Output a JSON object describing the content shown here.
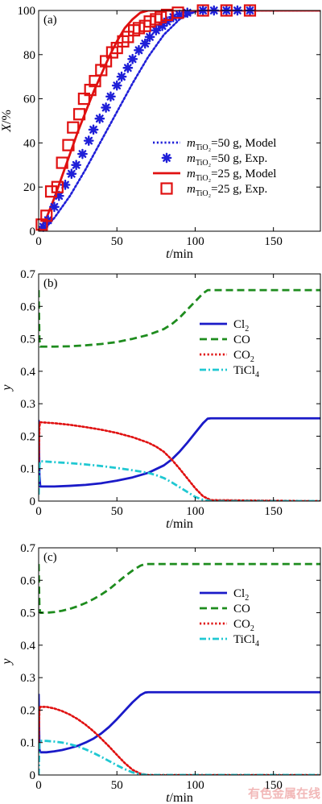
{
  "chart_data": [
    {
      "type": "line",
      "panel_label": "(a)",
      "xlabel": "t/min",
      "ylabel": "X/%",
      "xlim": [
        0,
        180
      ],
      "ylim": [
        0,
        100
      ],
      "xticks": [
        0,
        50,
        100,
        150
      ],
      "yticks": [
        0,
        20,
        40,
        60,
        80,
        100
      ],
      "legend_position": "lower-right",
      "series": [
        {
          "name": "m_TiO2=50 g, Model",
          "legend_label": {
            "m": "m",
            "sub": "TiO₂",
            "rest": "=50 g, Model"
          },
          "style": "dotted",
          "color": "#1f1fd8",
          "marker": "none",
          "x": [
            0,
            5,
            10,
            20,
            30,
            40,
            50,
            60,
            70,
            80,
            90,
            100,
            110,
            120,
            180
          ],
          "y": [
            0,
            2,
            6,
            16,
            28,
            41,
            54,
            67,
            79,
            89,
            96,
            99.5,
            100,
            100,
            100
          ]
        },
        {
          "name": "m_TiO2=50 g, Exp.",
          "legend_label": {
            "m": "m",
            "sub": "TiO₂",
            "rest": "=50 g, Exp."
          },
          "style": "none",
          "color": "#1f1fd8",
          "marker": "asterisk",
          "x": [
            3,
            6,
            10,
            13,
            17,
            21,
            24,
            28,
            32,
            35,
            39,
            43,
            46,
            50,
            53,
            57,
            60,
            64,
            68,
            71,
            75,
            79,
            82,
            86,
            90,
            95,
            105,
            112,
            120,
            127,
            135
          ],
          "y": [
            2,
            5,
            11,
            16,
            21,
            26,
            30,
            35,
            41,
            46,
            51,
            56,
            61,
            66,
            70,
            74,
            78,
            82,
            85,
            88,
            91,
            93,
            95,
            97,
            98,
            99,
            100,
            100,
            100,
            100,
            100
          ]
        },
        {
          "name": "m_TiO2=25 g, Model",
          "legend_label": {
            "m": "m",
            "sub": "TiO₂",
            "rest": "=25 g, Model"
          },
          "style": "solid",
          "color": "#e01010",
          "marker": "none",
          "x": [
            0,
            5,
            10,
            15,
            20,
            25,
            30,
            35,
            40,
            45,
            50,
            55,
            60,
            65,
            70,
            75,
            80,
            180
          ],
          "y": [
            0,
            6,
            15,
            25,
            35,
            45,
            54,
            63,
            71,
            79,
            86,
            92,
            96,
            99,
            100,
            100,
            100,
            100
          ]
        },
        {
          "name": "m_TiO2=25 g, Exp.",
          "legend_label": {
            "m": "m",
            "sub": "TiO₂",
            "rest": "=25 g, Exp."
          },
          "style": "none",
          "color": "#e01010",
          "marker": "square",
          "x": [
            2,
            5,
            8,
            12,
            15,
            19,
            22,
            26,
            29,
            33,
            36,
            40,
            43,
            47,
            50,
            54,
            57,
            61,
            64,
            68,
            71,
            75,
            78,
            82,
            89,
            105,
            120,
            135
          ],
          "y": [
            3,
            7,
            18,
            20,
            31,
            39,
            47,
            53,
            60,
            64,
            68,
            73,
            77,
            81,
            83,
            86,
            88,
            91,
            92,
            93,
            95,
            96,
            97,
            98,
            99,
            100,
            100,
            100
          ]
        }
      ]
    },
    {
      "type": "line",
      "panel_label": "(b)",
      "xlabel": "t/min",
      "ylabel": "y",
      "xlim": [
        0,
        180
      ],
      "ylim": [
        0,
        0.7
      ],
      "xticks": [
        0,
        50,
        100,
        150
      ],
      "yticks": [
        0,
        0.1,
        0.2,
        0.3,
        0.4,
        0.5,
        0.6,
        0.7
      ],
      "legend_position": "right",
      "series": [
        {
          "name": "Cl2",
          "legend_label": {
            "m": "Cl",
            "sub": "2",
            "rest": ""
          },
          "style": "solid",
          "color": "#1a1ac8",
          "x": [
            0,
            0.5,
            1,
            10,
            20,
            30,
            40,
            50,
            60,
            70,
            80,
            85,
            90,
            95,
            100,
            105,
            108,
            110,
            180
          ],
          "y": [
            0.25,
            0.08,
            0.045,
            0.045,
            0.047,
            0.05,
            0.055,
            0.063,
            0.073,
            0.087,
            0.11,
            0.128,
            0.152,
            0.18,
            0.21,
            0.24,
            0.254,
            0.255,
            0.255
          ]
        },
        {
          "name": "CO",
          "legend_label": {
            "m": "CO",
            "sub": "",
            "rest": ""
          },
          "style": "dashed",
          "color": "#1e8c1e",
          "x": [
            0,
            0.5,
            1,
            10,
            20,
            30,
            40,
            50,
            60,
            70,
            80,
            85,
            90,
            95,
            100,
            105,
            108,
            110,
            180
          ],
          "y": [
            0.65,
            0.5,
            0.476,
            0.476,
            0.477,
            0.48,
            0.484,
            0.49,
            0.5,
            0.512,
            0.53,
            0.545,
            0.565,
            0.59,
            0.615,
            0.64,
            0.65,
            0.65,
            0.65
          ]
        },
        {
          "name": "CO2",
          "legend_label": {
            "m": "CO",
            "sub": "2",
            "rest": ""
          },
          "style": "dotted",
          "color": "#e01010",
          "x": [
            0,
            0.5,
            1,
            10,
            20,
            30,
            40,
            50,
            60,
            70,
            75,
            80,
            85,
            90,
            95,
            100,
            105,
            110,
            180
          ],
          "y": [
            0.1,
            0.23,
            0.243,
            0.24,
            0.235,
            0.228,
            0.22,
            0.21,
            0.197,
            0.18,
            0.168,
            0.152,
            0.128,
            0.1,
            0.07,
            0.04,
            0.015,
            0.003,
            0.0
          ]
        },
        {
          "name": "TiCl4",
          "legend_label": {
            "m": "TiCl",
            "sub": "4",
            "rest": ""
          },
          "style": "dashdot",
          "color": "#20c8d2",
          "x": [
            0,
            0.5,
            1,
            10,
            20,
            30,
            40,
            50,
            60,
            70,
            75,
            80,
            85,
            90,
            95,
            100,
            105,
            110,
            180
          ],
          "y": [
            0.02,
            0.11,
            0.123,
            0.12,
            0.117,
            0.113,
            0.108,
            0.102,
            0.095,
            0.087,
            0.08,
            0.071,
            0.058,
            0.043,
            0.028,
            0.013,
            0.004,
            0.0,
            0.0
          ]
        }
      ]
    },
    {
      "type": "line",
      "panel_label": "(c)",
      "xlabel": "t/min",
      "ylabel": "y",
      "xlim": [
        0,
        180
      ],
      "ylim": [
        0,
        0.7
      ],
      "xticks": [
        0,
        50,
        100,
        150
      ],
      "yticks": [
        0,
        0.1,
        0.2,
        0.3,
        0.4,
        0.5,
        0.6,
        0.7
      ],
      "legend_position": "right",
      "series": [
        {
          "name": "Cl2",
          "legend_label": {
            "m": "Cl",
            "sub": "2",
            "rest": ""
          },
          "style": "solid",
          "color": "#1a1ac8",
          "x": [
            0,
            0.5,
            1,
            5,
            10,
            15,
            20,
            25,
            30,
            35,
            40,
            45,
            50,
            55,
            60,
            65,
            68,
            70,
            180
          ],
          "y": [
            0.25,
            0.08,
            0.07,
            0.07,
            0.073,
            0.077,
            0.083,
            0.09,
            0.1,
            0.112,
            0.128,
            0.148,
            0.172,
            0.198,
            0.224,
            0.246,
            0.254,
            0.255,
            0.255
          ]
        },
        {
          "name": "CO",
          "legend_label": {
            "m": "CO",
            "sub": "",
            "rest": ""
          },
          "style": "dashed",
          "color": "#1e8c1e",
          "x": [
            0,
            0.5,
            1,
            5,
            10,
            15,
            20,
            25,
            30,
            35,
            40,
            45,
            50,
            55,
            60,
            65,
            68,
            70,
            180
          ],
          "y": [
            0.65,
            0.52,
            0.5,
            0.5,
            0.502,
            0.506,
            0.512,
            0.52,
            0.53,
            0.542,
            0.556,
            0.572,
            0.592,
            0.612,
            0.63,
            0.645,
            0.65,
            0.65,
            0.65
          ]
        },
        {
          "name": "CO2",
          "legend_label": {
            "m": "CO",
            "sub": "2",
            "rest": ""
          },
          "style": "dotted",
          "color": "#e01010",
          "x": [
            0,
            0.5,
            1,
            5,
            10,
            15,
            20,
            25,
            30,
            35,
            40,
            45,
            50,
            55,
            60,
            65,
            70,
            75,
            180
          ],
          "y": [
            0.1,
            0.2,
            0.21,
            0.21,
            0.205,
            0.197,
            0.186,
            0.172,
            0.155,
            0.135,
            0.112,
            0.088,
            0.062,
            0.037,
            0.016,
            0.004,
            0.0,
            0.0,
            0.0
          ]
        },
        {
          "name": "TiCl4",
          "legend_label": {
            "m": "TiCl",
            "sub": "4",
            "rest": ""
          },
          "style": "dashdot",
          "color": "#20c8d2",
          "x": [
            0,
            0.5,
            1,
            5,
            10,
            15,
            20,
            25,
            30,
            35,
            40,
            45,
            50,
            55,
            60,
            65,
            70,
            75,
            180
          ],
          "y": [
            0.0,
            0.1,
            0.105,
            0.105,
            0.103,
            0.1,
            0.095,
            0.088,
            0.079,
            0.068,
            0.056,
            0.043,
            0.03,
            0.018,
            0.008,
            0.002,
            0.0,
            0.0,
            0.0
          ]
        }
      ]
    }
  ],
  "watermark": "有色金属在线"
}
